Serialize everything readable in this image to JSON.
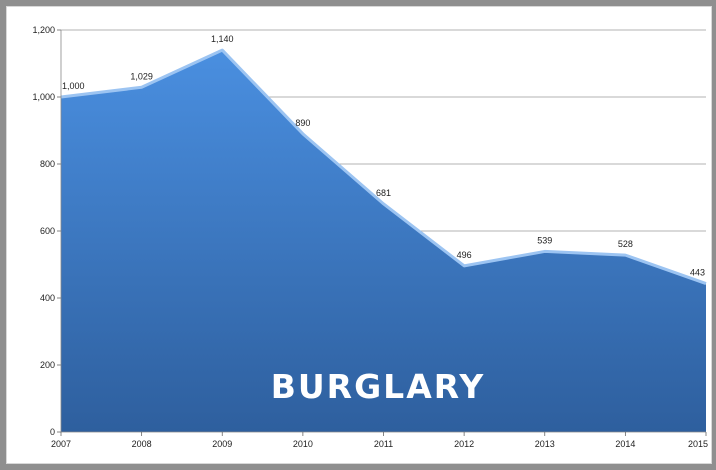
{
  "chart_data": {
    "type": "area",
    "title": "BURGLARY",
    "x": [
      "2007",
      "2008",
      "2009",
      "2010",
      "2011",
      "2012",
      "2013",
      "2014",
      "2015"
    ],
    "values": [
      1000,
      1029,
      1140,
      890,
      681,
      496,
      539,
      528,
      443
    ],
    "data_labels": [
      "1,000",
      "1,029",
      "1,140",
      "890",
      "681",
      "496",
      "539",
      "528",
      "443"
    ],
    "yticks": [
      "0",
      "200",
      "400",
      "600",
      "800",
      "1,000",
      "1,200"
    ],
    "ylim": [
      0,
      1200
    ],
    "grid": true,
    "legend": "none",
    "colors": {
      "fill_top": "#4a8fe0",
      "fill_bottom": "#2e5f9e",
      "line": "#9cc4f2",
      "grid": "#9a9a9a"
    }
  }
}
